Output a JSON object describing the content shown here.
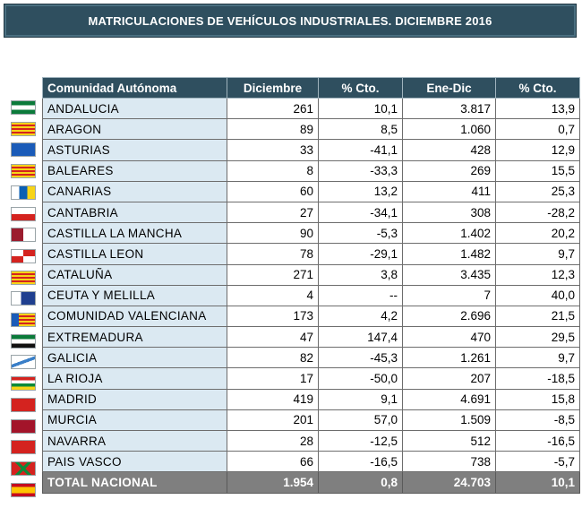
{
  "title": "MATRICULACIONES DE VEHÍCULOS INDUSTRIALES. DICIEMBRE 2016",
  "columns": [
    "Comunidad Autónoma",
    "Diciembre",
    "% Cto.",
    "Ene-Dic",
    "% Cto."
  ],
  "rows": [
    {
      "name": "ANDALUCIA",
      "dic": "261",
      "cto1": "10,1",
      "ene": "3.817",
      "cto2": "13,9",
      "flag": "andalucia-flag-icon"
    },
    {
      "name": "ARAGON",
      "dic": "89",
      "cto1": "8,5",
      "ene": "1.060",
      "cto2": "0,7",
      "flag": "aragon-flag-icon"
    },
    {
      "name": "ASTURIAS",
      "dic": "33",
      "cto1": "-41,1",
      "ene": "428",
      "cto2": "12,9",
      "flag": "asturias-flag-icon"
    },
    {
      "name": "BALEARES",
      "dic": "8",
      "cto1": "-33,3",
      "ene": "269",
      "cto2": "15,5",
      "flag": "baleares-flag-icon"
    },
    {
      "name": "CANARIAS",
      "dic": "60",
      "cto1": "13,2",
      "ene": "411",
      "cto2": "25,3",
      "flag": "canarias-flag-icon"
    },
    {
      "name": "CANTABRIA",
      "dic": "27",
      "cto1": "-34,1",
      "ene": "308",
      "cto2": "-28,2",
      "flag": "cantabria-flag-icon"
    },
    {
      "name": "CASTILLA LA MANCHA",
      "dic": "90",
      "cto1": "-5,3",
      "ene": "1.402",
      "cto2": "20,2",
      "flag": "castilla-la-mancha-flag-icon"
    },
    {
      "name": "CASTILLA LEON",
      "dic": "78",
      "cto1": "-29,1",
      "ene": "1.482",
      "cto2": "9,7",
      "flag": "castilla-leon-flag-icon"
    },
    {
      "name": "CATALUÑA",
      "dic": "271",
      "cto1": "3,8",
      "ene": "3.435",
      "cto2": "12,3",
      "flag": "cataluna-flag-icon"
    },
    {
      "name": "CEUTA Y MELILLA",
      "dic": "4",
      "cto1": "--",
      "ene": "7",
      "cto2": "40,0",
      "flag": "ceuta-melilla-flag-icon"
    },
    {
      "name": "COMUNIDAD VALENCIANA",
      "dic": "173",
      "cto1": "4,2",
      "ene": "2.696",
      "cto2": "21,5",
      "flag": "valenciana-flag-icon"
    },
    {
      "name": "EXTREMADURA",
      "dic": "47",
      "cto1": "147,4",
      "ene": "470",
      "cto2": "29,5",
      "flag": "extremadura-flag-icon"
    },
    {
      "name": "GALICIA",
      "dic": "82",
      "cto1": "-45,3",
      "ene": "1.261",
      "cto2": "9,7",
      "flag": "galicia-flag-icon"
    },
    {
      "name": "LA RIOJA",
      "dic": "17",
      "cto1": "-50,0",
      "ene": "207",
      "cto2": "-18,5",
      "flag": "la-rioja-flag-icon"
    },
    {
      "name": "MADRID",
      "dic": "419",
      "cto1": "9,1",
      "ene": "4.691",
      "cto2": "15,8",
      "flag": "madrid-flag-icon"
    },
    {
      "name": "MURCIA",
      "dic": "201",
      "cto1": "57,0",
      "ene": "1.509",
      "cto2": "-8,5",
      "flag": "murcia-flag-icon"
    },
    {
      "name": "NAVARRA",
      "dic": "28",
      "cto1": "-12,5",
      "ene": "512",
      "cto2": "-16,5",
      "flag": "navarra-flag-icon"
    },
    {
      "name": "PAIS VASCO",
      "dic": "66",
      "cto1": "-16,5",
      "ene": "738",
      "cto2": "-5,7",
      "flag": "pais-vasco-flag-icon"
    }
  ],
  "total": {
    "name": "TOTAL NACIONAL",
    "dic": "1.954",
    "cto1": "0,8",
    "ene": "24.703",
    "cto2": "10,1",
    "flag": "espana-flag-icon"
  },
  "colors": {
    "header": "#2f4f5f",
    "name_cell": "#dbe9f2",
    "total_row": "#7f7f7f"
  }
}
